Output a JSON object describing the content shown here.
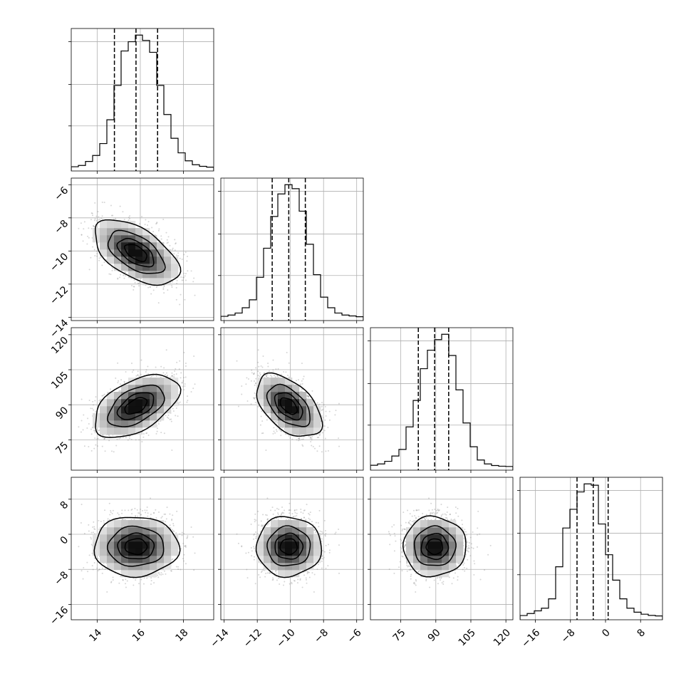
{
  "chart_data": {
    "type": "corner",
    "title": "",
    "grid": true,
    "parameters": [
      {
        "index": 0,
        "mean": 15.8,
        "sd": 0.95,
        "range": [
          12.8,
          19.4
        ],
        "ticks": [
          14,
          16,
          18
        ],
        "tick_labels": [
          "14",
          "16",
          "18"
        ],
        "quantiles": [
          14.8,
          15.8,
          16.8
        ]
      },
      {
        "index": 1,
        "mean": -10.1,
        "sd": 0.95,
        "range": [
          -14.2,
          -5.6
        ],
        "ticks": [
          -14,
          -12,
          -10,
          -8,
          -6
        ],
        "tick_labels": [
          "−14",
          "−12",
          "−10",
          "−8",
          "−6"
        ],
        "quantiles": [
          -11.1,
          -10.1,
          -9.1
        ]
      },
      {
        "index": 2,
        "mean": 89.5,
        "sd": 6.5,
        "range": [
          62,
          123
        ],
        "ticks": [
          75,
          90,
          105,
          120
        ],
        "tick_labels": [
          "75",
          "90",
          "105",
          "120"
        ],
        "quantiles": [
          82.5,
          89.5,
          95.5
        ]
      },
      {
        "index": 3,
        "mean": -2.8,
        "sd": 3.3,
        "range": [
          -19.5,
          13.0
        ],
        "ticks": [
          -16,
          -8,
          0,
          8
        ],
        "tick_labels": [
          "−16",
          "−8",
          "0",
          "8"
        ],
        "quantiles": [
          -6.5,
          -2.8,
          0.6
        ]
      }
    ],
    "correlations": [
      [
        1.0,
        -0.55,
        0.5,
        0.0
      ],
      [
        -0.55,
        1.0,
        -0.5,
        0.0
      ],
      [
        0.5,
        -0.5,
        1.0,
        0.0
      ],
      [
        0.0,
        0.0,
        0.0,
        1.0
      ]
    ],
    "histograms": [
      [
        0.005,
        0.015,
        0.045,
        0.09,
        0.18,
        0.36,
        0.62,
        0.88,
        0.95,
        1.0,
        0.96,
        0.87,
        0.62,
        0.4,
        0.22,
        0.11,
        0.05,
        0.02,
        0.008,
        0.002
      ],
      [
        0.005,
        0.015,
        0.03,
        0.07,
        0.13,
        0.3,
        0.52,
        0.76,
        0.93,
        1.0,
        0.97,
        0.8,
        0.55,
        0.32,
        0.15,
        0.07,
        0.03,
        0.015,
        0.008,
        0.002
      ],
      [
        0.01,
        0.02,
        0.04,
        0.08,
        0.13,
        0.3,
        0.5,
        0.74,
        0.88,
        0.96,
        1.0,
        0.84,
        0.58,
        0.33,
        0.15,
        0.05,
        0.02,
        0.008,
        0.003,
        0.001
      ],
      [
        0.005,
        0.02,
        0.04,
        0.06,
        0.13,
        0.37,
        0.66,
        0.8,
        0.93,
        0.99,
        0.98,
        0.69,
        0.46,
        0.27,
        0.13,
        0.06,
        0.03,
        0.015,
        0.006,
        0.002
      ]
    ],
    "n_hist_bins": 20,
    "n_density_bins": 20,
    "contour_levels": [
      0.118,
      0.393,
      0.675,
      0.865
    ],
    "n_scatter_points": 1500
  }
}
